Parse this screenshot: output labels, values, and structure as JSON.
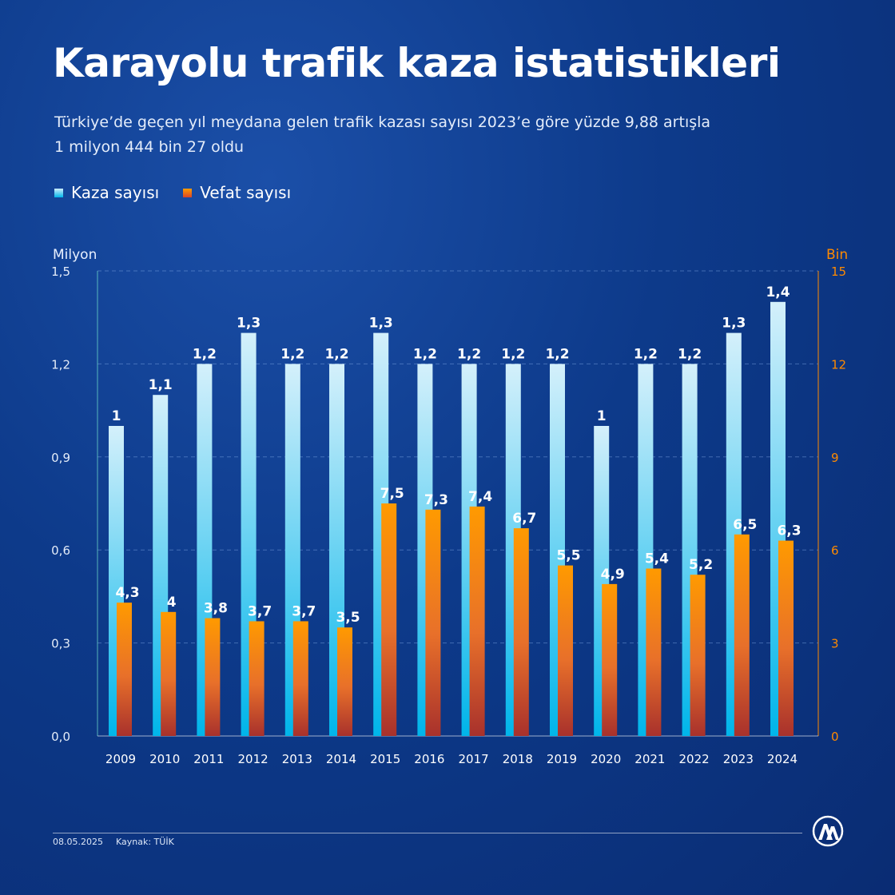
{
  "header": {
    "title": "Karayolu trafik kaza istatistikleri",
    "subtitle": "Türkiye’de geçen yıl meydana gelen trafik kazası sayısı 2023’e göre yüzde 9,88 artışla 1 milyon 444 bin 27 oldu"
  },
  "legend": {
    "kaza_label": "Kaza sayısı",
    "vefat_label": "Vefat sayısı"
  },
  "axes": {
    "left_unit": "Milyon",
    "right_unit": "Bin"
  },
  "footer": {
    "date": "08.05.2025",
    "source": "Kaynak: TÜİK"
  },
  "colors": {
    "kaza_top": "#d4f0fb",
    "kaza_bottom": "#00b5ea",
    "vefat_top": "#ff9a00",
    "vefat_bottom": "#a8312c",
    "right_axis": "#ff8a00"
  },
  "logo_icon": "aa-logo-icon",
  "chart_data": {
    "type": "bar",
    "categories": [
      "2009",
      "2010",
      "2011",
      "2012",
      "2013",
      "2014",
      "2015",
      "2016",
      "2017",
      "2018",
      "2019",
      "2020",
      "2021",
      "2022",
      "2023",
      "2024"
    ],
    "series": [
      {
        "name": "Kaza sayısı",
        "axis": "left",
        "values": [
          1.0,
          1.1,
          1.2,
          1.3,
          1.2,
          1.2,
          1.3,
          1.2,
          1.2,
          1.2,
          1.2,
          1.0,
          1.2,
          1.2,
          1.3,
          1.4
        ],
        "labels": [
          "1",
          "1,1",
          "1,2",
          "1,3",
          "1,2",
          "1,2",
          "1,3",
          "1,2",
          "1,2",
          "1,2",
          "1,2",
          "1",
          "1,2",
          "1,2",
          "1,3",
          "1,4"
        ]
      },
      {
        "name": "Vefat sayısı",
        "axis": "right",
        "values": [
          4.3,
          4.0,
          3.8,
          3.7,
          3.7,
          3.5,
          7.5,
          7.3,
          7.4,
          6.7,
          5.5,
          4.9,
          5.4,
          5.2,
          6.5,
          6.3
        ],
        "labels": [
          "4,3",
          "4",
          "3,8",
          "3,7",
          "3,7",
          "3,5",
          "7,5",
          "7,3",
          "7,4",
          "6,7",
          "5,5",
          "4,9",
          "5,4",
          "5,2",
          "6,5",
          "6,3"
        ]
      }
    ],
    "ylim_left": [
      0,
      1.5
    ],
    "ylim_right": [
      0,
      15
    ],
    "yticks_left": [
      "0,0",
      "0,3",
      "0,6",
      "0,9",
      "1,2",
      "1,5"
    ],
    "yticks_right": [
      "0",
      "3",
      "6",
      "9",
      "12",
      "15"
    ],
    "grid": true
  }
}
